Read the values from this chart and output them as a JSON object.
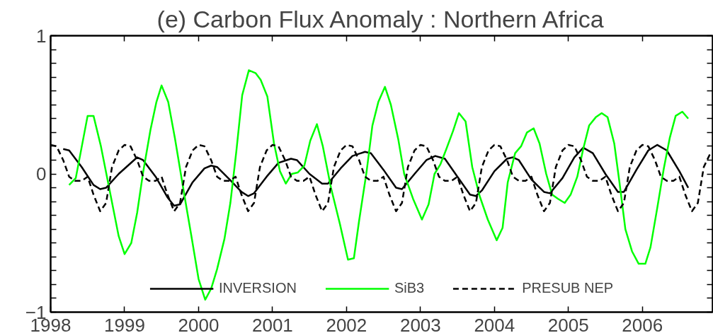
{
  "chart_data": {
    "type": "line",
    "title": "(e) Carbon Flux Anomaly : Northern Africa",
    "xlim": [
      1998,
      2006.95
    ],
    "xticks": [
      1998,
      1999,
      2000,
      2001,
      2002,
      2003,
      2004,
      2005,
      2006
    ],
    "ylim": [
      -1,
      1
    ],
    "yticks": [
      -1,
      {
        "value": -0.9,
        "label": null
      },
      {
        "value": -0.8,
        "label": null
      },
      {
        "value": -0.7,
        "label": null
      },
      {
        "value": -0.6,
        "label": null
      },
      {
        "value": -0.5,
        "label": null
      },
      {
        "value": -0.4,
        "label": null
      },
      {
        "value": -0.3,
        "label": null
      },
      {
        "value": -0.2,
        "label": null
      },
      {
        "value": -0.1,
        "label": null
      },
      0,
      {
        "value": 0.1,
        "label": null
      },
      {
        "value": 0.2,
        "label": null
      },
      {
        "value": 0.3,
        "label": null
      },
      {
        "value": 0.4,
        "label": null
      },
      {
        "value": 0.5,
        "label": null
      },
      {
        "value": 0.6,
        "label": null
      },
      {
        "value": 0.7,
        "label": null
      },
      {
        "value": 0.8,
        "label": null
      },
      {
        "value": 0.9,
        "label": null
      },
      1
    ],
    "grid": false,
    "legend": "bottom",
    "series": [
      {
        "name": "INVERSION",
        "color": "#000000",
        "line_style": "solid",
        "x": [
          1998.17,
          1998.25,
          1998.42,
          1998.58,
          1998.67,
          1998.75,
          1998.92,
          1999.17,
          1999.25,
          1999.42,
          1999.58,
          1999.67,
          1999.75,
          1999.92,
          2000.08,
          2000.17,
          2000.25,
          2000.42,
          2000.58,
          2000.67,
          2000.75,
          2000.92,
          2001.08,
          2001.25,
          2001.33,
          2001.5,
          2001.67,
          2001.75,
          2001.92,
          2002.08,
          2002.25,
          2002.33,
          2002.5,
          2002.67,
          2002.75,
          2002.92,
          2003.08,
          2003.2,
          2003.33,
          2003.5,
          2003.67,
          2003.75,
          2003.83,
          2004.0,
          2004.17,
          2004.25,
          2004.33,
          2004.5,
          2004.67,
          2004.75,
          2004.92,
          2005.08,
          2005.2,
          2005.33,
          2005.5,
          2005.67,
          2005.75,
          2005.92,
          2006.08,
          2006.2,
          2006.33,
          2006.5,
          2006.62
        ],
        "values": [
          0.18,
          0.17,
          0.05,
          -0.08,
          -0.11,
          -0.1,
          0.0,
          0.12,
          0.1,
          -0.02,
          -0.17,
          -0.23,
          -0.22,
          -0.06,
          0.04,
          0.06,
          0.05,
          -0.04,
          -0.13,
          -0.16,
          -0.14,
          -0.02,
          0.08,
          0.11,
          0.1,
          0.0,
          -0.07,
          -0.07,
          0.04,
          0.13,
          0.16,
          0.15,
          0.03,
          -0.1,
          -0.11,
          0.0,
          0.1,
          0.13,
          0.11,
          -0.02,
          -0.15,
          -0.16,
          -0.12,
          0.02,
          0.11,
          0.12,
          0.1,
          -0.04,
          -0.13,
          -0.14,
          -0.03,
          0.12,
          0.19,
          0.15,
          0.0,
          -0.13,
          -0.13,
          0.03,
          0.17,
          0.21,
          0.17,
          0.02,
          -0.1
        ]
      },
      {
        "name": "SiB3",
        "color": "#00ff00",
        "line_style": "solid",
        "x": [
          1998.25,
          1998.34,
          1998.5,
          1998.58,
          1998.68,
          1998.92,
          1999.0,
          1999.09,
          1999.17,
          1999.25,
          1999.35,
          1999.43,
          1999.5,
          1999.59,
          1999.68,
          1999.81,
          1999.9,
          2000.0,
          2000.09,
          2000.17,
          2000.25,
          2000.35,
          2000.43,
          2000.51,
          2000.59,
          2000.68,
          2000.77,
          2000.84,
          2000.93,
          2001.02,
          2001.1,
          2001.18,
          2001.26,
          2001.34,
          2001.43,
          2001.51,
          2001.6,
          2001.68,
          2001.79,
          2001.91,
          2002.02,
          2002.1,
          2002.17,
          2002.27,
          2002.35,
          2002.43,
          2002.52,
          2002.6,
          2002.7,
          2002.78,
          2002.9,
          2003.02,
          2003.11,
          2003.19,
          2003.27,
          2003.35,
          2003.44,
          2003.52,
          2003.61,
          2003.7,
          2003.8,
          2003.91,
          2004.03,
          2004.11,
          2004.18,
          2004.28,
          2004.36,
          2004.44,
          2004.53,
          2004.61,
          2004.7,
          2004.78,
          2004.86,
          2004.95,
          2005.03,
          2005.12,
          2005.2,
          2005.28,
          2005.37,
          2005.45,
          2005.53,
          2005.62,
          2005.69,
          2005.77,
          2005.86,
          2005.95,
          2006.04,
          2006.11,
          2006.2,
          2006.29,
          2006.37,
          2006.45,
          2006.54,
          2006.62
        ],
        "values": [
          -0.08,
          -0.03,
          0.42,
          0.42,
          0.2,
          -0.45,
          -0.58,
          -0.5,
          -0.28,
          0.01,
          0.32,
          0.52,
          0.64,
          0.52,
          0.26,
          -0.16,
          -0.44,
          -0.76,
          -0.91,
          -0.83,
          -0.69,
          -0.47,
          -0.21,
          0.16,
          0.57,
          0.75,
          0.73,
          0.68,
          0.56,
          0.22,
          0.02,
          -0.07,
          0.0,
          0.01,
          0.06,
          0.24,
          0.36,
          0.2,
          -0.1,
          -0.36,
          -0.62,
          -0.61,
          -0.34,
          0.01,
          0.35,
          0.52,
          0.63,
          0.5,
          0.25,
          0.0,
          -0.18,
          -0.33,
          -0.22,
          0.0,
          0.07,
          0.18,
          0.31,
          0.44,
          0.38,
          0.05,
          -0.16,
          -0.33,
          -0.48,
          -0.39,
          -0.06,
          0.15,
          0.2,
          0.3,
          0.33,
          0.22,
          0.0,
          -0.15,
          -0.18,
          -0.21,
          -0.15,
          -0.02,
          0.18,
          0.35,
          0.41,
          0.44,
          0.41,
          0.22,
          -0.06,
          -0.4,
          -0.56,
          -0.65,
          -0.65,
          -0.53,
          -0.25,
          0.04,
          0.26,
          0.42,
          0.45,
          0.4
        ]
      },
      {
        "name": "PRESUB NEP",
        "color": "#000000",
        "line_style": "dashed",
        "x": [
          1998.0,
          1998.08,
          1998.17,
          1998.25,
          1998.33,
          1998.42,
          1998.5,
          1998.58,
          1998.67,
          1998.75,
          1998.83,
          1998.92,
          1999.0,
          1999.08,
          1999.17,
          1999.25,
          1999.33,
          1999.42,
          1999.5,
          1999.58,
          1999.67,
          1999.75,
          1999.83,
          1999.92,
          2000.0,
          2000.08,
          2000.17,
          2000.25,
          2000.33,
          2000.42,
          2000.5,
          2000.58,
          2000.67,
          2000.75,
          2000.83,
          2000.92,
          2001.0,
          2001.08,
          2001.17,
          2001.25,
          2001.33,
          2001.42,
          2001.5,
          2001.58,
          2001.67,
          2001.75,
          2001.83,
          2001.92,
          2002.0,
          2002.08,
          2002.17,
          2002.25,
          2002.33,
          2002.42,
          2002.5,
          2002.58,
          2002.67,
          2002.75,
          2002.83,
          2002.92,
          2003.0,
          2003.08,
          2003.17,
          2003.25,
          2003.33,
          2003.42,
          2003.5,
          2003.58,
          2003.67,
          2003.75,
          2003.83,
          2003.92,
          2004.0,
          2004.08,
          2004.17,
          2004.25,
          2004.33,
          2004.42,
          2004.5,
          2004.58,
          2004.67,
          2004.75,
          2004.83,
          2004.92,
          2005.0,
          2005.08,
          2005.17,
          2005.25,
          2005.33,
          2005.42,
          2005.5,
          2005.58,
          2005.67,
          2005.75,
          2005.83,
          2005.92,
          2006.0,
          2006.08,
          2006.17,
          2006.25,
          2006.33,
          2006.42,
          2006.5,
          2006.58,
          2006.67,
          2006.75,
          2006.83,
          2006.92
        ],
        "values": [
          0.21,
          0.2,
          0.1,
          -0.02,
          -0.05,
          -0.05,
          -0.02,
          -0.15,
          -0.27,
          -0.21,
          0.05,
          0.17,
          0.21,
          0.2,
          0.1,
          -0.02,
          -0.05,
          -0.05,
          -0.02,
          -0.15,
          -0.27,
          -0.21,
          0.05,
          0.17,
          0.21,
          0.2,
          0.1,
          -0.02,
          -0.05,
          -0.05,
          -0.02,
          -0.15,
          -0.27,
          -0.21,
          0.05,
          0.17,
          0.21,
          0.2,
          0.1,
          -0.02,
          -0.05,
          -0.05,
          -0.02,
          -0.15,
          -0.27,
          -0.21,
          0.05,
          0.17,
          0.21,
          0.2,
          0.1,
          -0.02,
          -0.05,
          -0.05,
          -0.02,
          -0.15,
          -0.27,
          -0.21,
          0.05,
          0.17,
          0.21,
          0.2,
          0.1,
          -0.02,
          -0.05,
          -0.05,
          -0.02,
          -0.15,
          -0.27,
          -0.21,
          0.05,
          0.17,
          0.21,
          0.2,
          0.1,
          -0.02,
          -0.05,
          -0.05,
          -0.02,
          -0.15,
          -0.27,
          -0.21,
          0.05,
          0.17,
          0.21,
          0.2,
          0.1,
          -0.02,
          -0.05,
          -0.05,
          -0.02,
          -0.15,
          -0.27,
          -0.21,
          0.05,
          0.17,
          0.21,
          0.2,
          0.1,
          -0.02,
          -0.05,
          -0.05,
          -0.02,
          -0.15,
          -0.27,
          -0.21,
          0.05,
          0.15
        ]
      }
    ]
  }
}
